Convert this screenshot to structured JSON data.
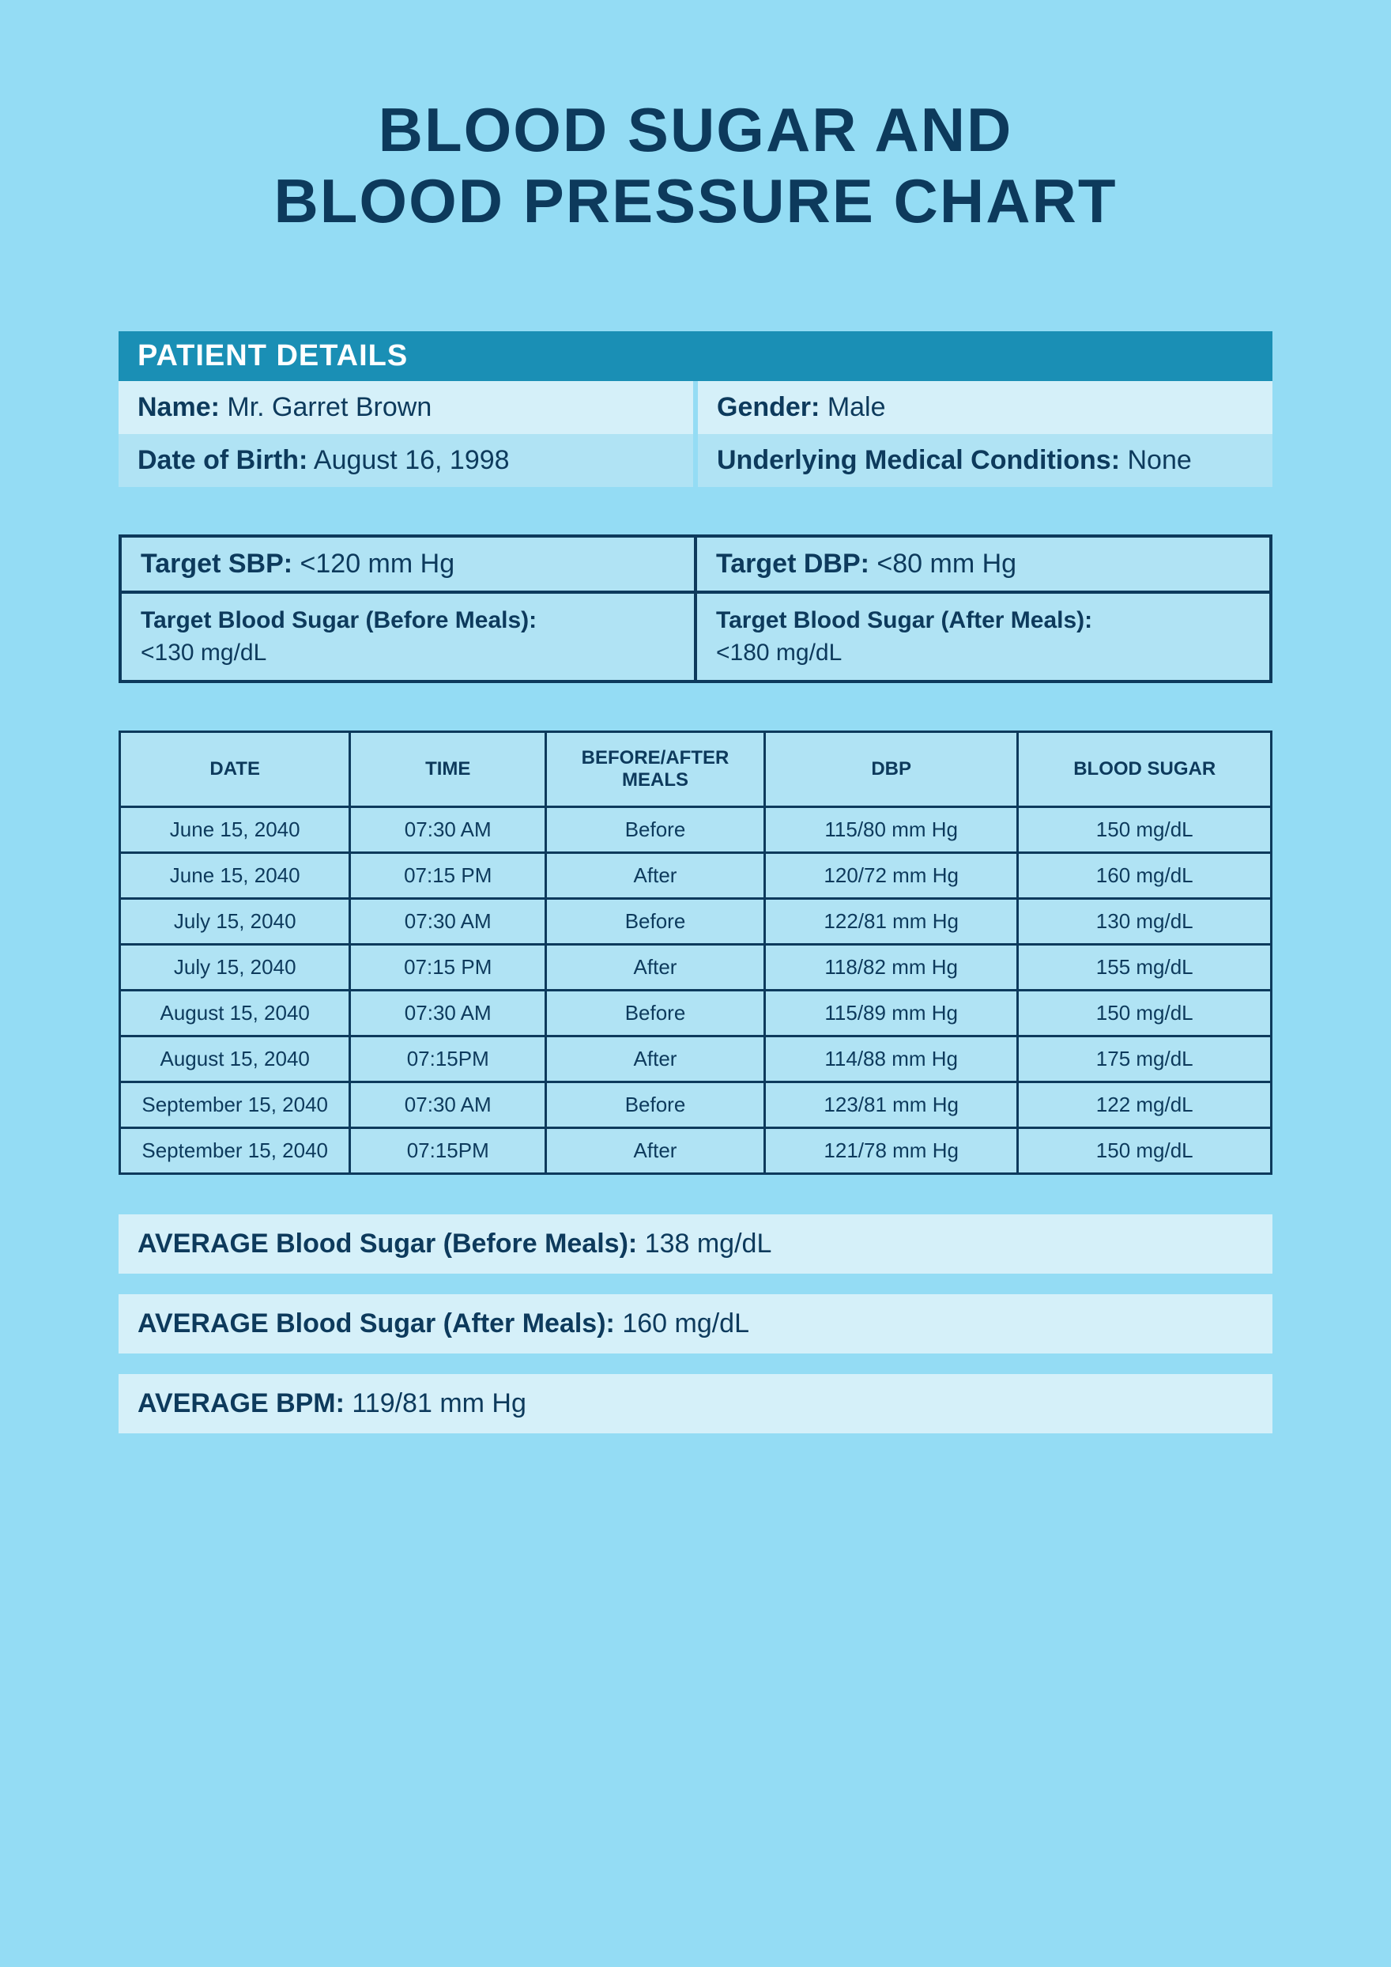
{
  "title_line1": "BLOOD SUGAR AND",
  "title_line2": "BLOOD PRESSURE CHART",
  "patient_header": "PATIENT DETAILS",
  "patient": {
    "name_label": "Name:",
    "name_value": "Mr. Garret Brown",
    "gender_label": "Gender:",
    "gender_value": "Male",
    "dob_label": "Date of Birth:",
    "dob_value": "August 16, 1998",
    "cond_label": "Underlying Medical Conditions:",
    "cond_value": "None"
  },
  "targets": {
    "sbp_label": "Target SBP:",
    "sbp_value": "<120 mm Hg",
    "dbp_label": "Target DBP:",
    "dbp_value": "<80 mm Hg",
    "bs_before_label": "Target Blood Sugar (Before Meals):",
    "bs_before_value": "<130 mg/dL",
    "bs_after_label": "Target Blood Sugar (After Meals):",
    "bs_after_value": "<180 mg/dL"
  },
  "table": {
    "columns": [
      "DATE",
      "TIME",
      "BEFORE/AFTER MEALS",
      "DBP",
      "BLOOD SUGAR"
    ],
    "rows": [
      [
        "June 15, 2040",
        "07:30 AM",
        "Before",
        "115/80 mm Hg",
        "150 mg/dL"
      ],
      [
        "June 15, 2040",
        "07:15 PM",
        "After",
        "120/72 mm Hg",
        "160 mg/dL"
      ],
      [
        "July 15, 2040",
        "07:30 AM",
        "Before",
        "122/81 mm Hg",
        "130 mg/dL"
      ],
      [
        "July 15, 2040",
        "07:15 PM",
        "After",
        "118/82 mm Hg",
        "155 mg/dL"
      ],
      [
        "August 15, 2040",
        "07:30 AM",
        "Before",
        "115/89 mm Hg",
        "150 mg/dL"
      ],
      [
        "August 15, 2040",
        "07:15PM",
        "After",
        "114/88 mm Hg",
        "175 mg/dL"
      ],
      [
        "September 15, 2040",
        "07:30 AM",
        "Before",
        "123/81 mm Hg",
        "122 mg/dL"
      ],
      [
        "September 15, 2040",
        "07:15PM",
        "After",
        "121/78 mm Hg",
        "150 mg/dL"
      ]
    ]
  },
  "averages": {
    "bs_before_label": "AVERAGE Blood Sugar (Before Meals):",
    "bs_before_value": "138 mg/dL",
    "bs_after_label": "AVERAGE Blood Sugar (After Meals):",
    "bs_after_value": "160 mg/dL",
    "bpm_label": "AVERAGE BPM:",
    "bpm_value": "119/81 mm Hg"
  },
  "colors": {
    "page_bg": "#94dcf4",
    "header_bar": "#1a8fb5",
    "pale_cell": "#d5f0f9",
    "mid_cell": "#b0e3f4",
    "border": "#0d3a5c",
    "text": "#0d3a5c"
  }
}
